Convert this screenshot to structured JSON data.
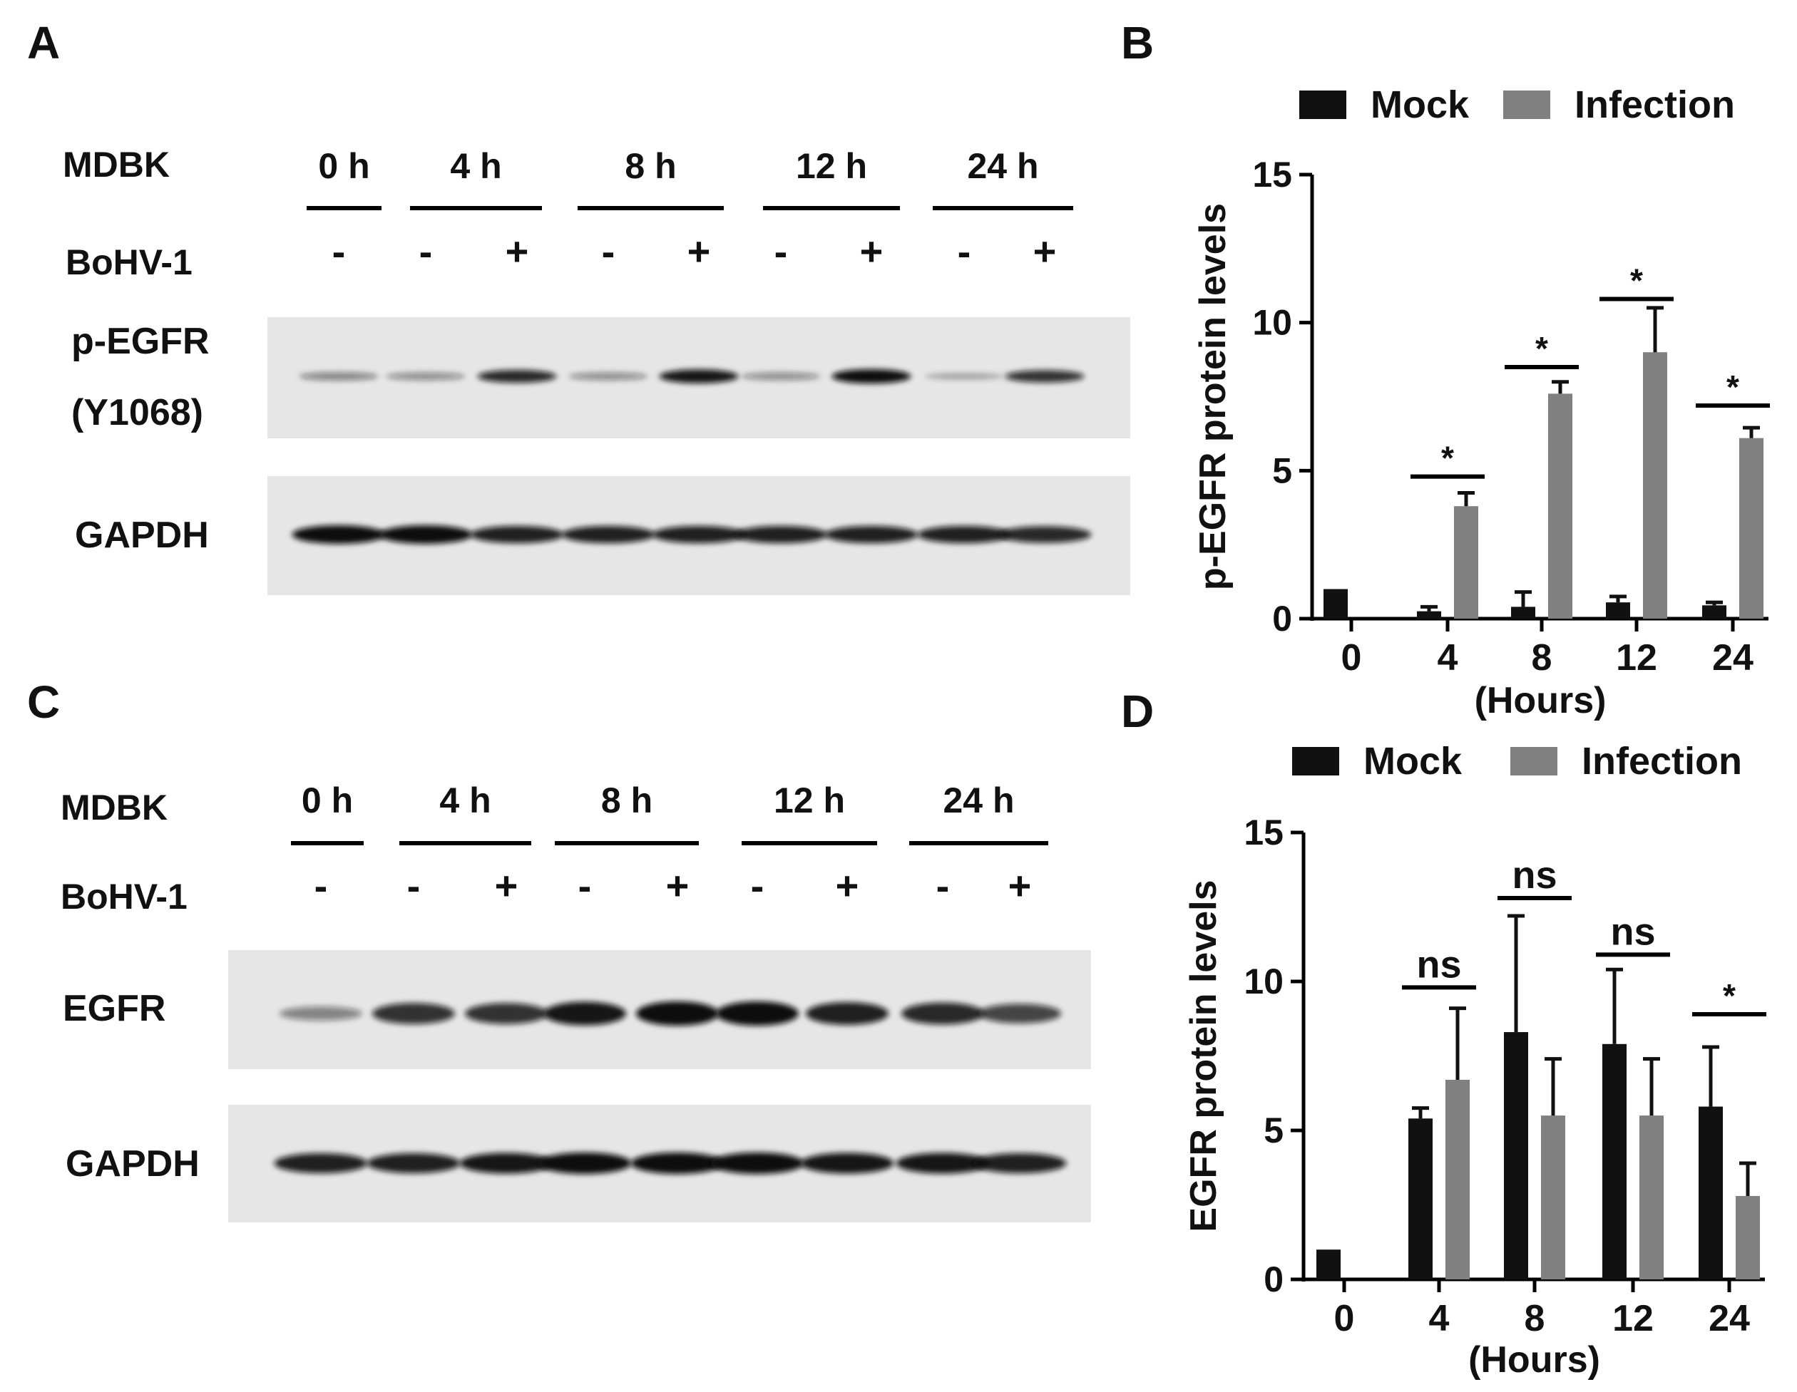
{
  "figure": {
    "panels": [
      {
        "letter": "A",
        "kind": "western_blot",
        "cell_label": "MDBK",
        "time_labels": [
          "0 h",
          "4 h",
          "8 h",
          "12 h",
          "24 h"
        ],
        "treatment_label": "BoHV-1",
        "signs": [
          "-",
          "-",
          "+",
          "-",
          "+",
          "-",
          "+",
          "-",
          "+"
        ],
        "blots": [
          {
            "label_lines": [
              "p-EGFR",
              "(Y1068)"
            ],
            "band_intensity": [
              0.35,
              0.3,
              0.85,
              0.3,
              0.95,
              0.3,
              1.0,
              0.15,
              0.8
            ]
          },
          {
            "label_lines": [
              "GAPDH"
            ],
            "band_intensity": [
              1.0,
              1.0,
              0.9,
              0.9,
              0.9,
              0.9,
              0.9,
              0.9,
              0.85
            ]
          }
        ]
      },
      {
        "letter": "C",
        "kind": "western_blot",
        "cell_label": "MDBK",
        "time_labels": [
          "0 h",
          "4 h",
          "8 h",
          "12 h",
          "24 h"
        ],
        "treatment_label": "BoHV-1",
        "signs": [
          "-",
          "-",
          "+",
          "-",
          "+",
          "-",
          "+",
          "-",
          "+"
        ],
        "blots": [
          {
            "label_lines": [
              "EGFR"
            ],
            "band_intensity": [
              0.35,
              0.8,
              0.8,
              0.95,
              1.0,
              1.0,
              0.9,
              0.85,
              0.7
            ]
          },
          {
            "label_lines": [
              "GAPDH"
            ],
            "band_intensity": [
              0.9,
              0.9,
              0.95,
              1.0,
              1.0,
              1.0,
              0.95,
              0.95,
              0.9
            ]
          }
        ]
      }
    ]
  },
  "chart_data": [
    {
      "panel": "B",
      "type": "bar",
      "categories": [
        "0",
        "4",
        "8",
        "12",
        "24"
      ],
      "xlabel": "(Hours)",
      "ylabel": "p-EGFR protein levels",
      "ylim": [
        0,
        15
      ],
      "yticks": [
        0,
        5,
        10,
        15
      ],
      "legend_position": "top",
      "series": [
        {
          "name": "Mock",
          "color": "#111111",
          "values": [
            1.0,
            0.25,
            0.4,
            0.55,
            0.45
          ],
          "errors": [
            0,
            0.15,
            0.5,
            0.2,
            0.1
          ]
        },
        {
          "name": "Infection",
          "color": "#808080",
          "values": [
            null,
            3.8,
            7.6,
            9.0,
            6.1
          ],
          "errors": [
            0,
            0.45,
            0.4,
            1.5,
            0.35
          ]
        }
      ],
      "annotations": [
        {
          "category": "4",
          "text": "*",
          "y": 4.8
        },
        {
          "category": "8",
          "text": "*",
          "y": 8.5
        },
        {
          "category": "12",
          "text": "*",
          "y": 10.8
        },
        {
          "category": "24",
          "text": "*",
          "y": 7.2
        }
      ]
    },
    {
      "panel": "D",
      "type": "bar",
      "categories": [
        "0",
        "4",
        "8",
        "12",
        "24"
      ],
      "xlabel": "(Hours)",
      "ylabel": "EGFR protein levels",
      "ylim": [
        0,
        15
      ],
      "yticks": [
        0,
        5,
        10,
        15
      ],
      "legend_position": "top",
      "series": [
        {
          "name": "Mock",
          "color": "#111111",
          "values": [
            1.0,
            5.4,
            8.3,
            7.9,
            5.8
          ],
          "errors": [
            0,
            0.35,
            3.9,
            2.5,
            2.0
          ]
        },
        {
          "name": "Infection",
          "color": "#808080",
          "values": [
            null,
            6.7,
            5.5,
            5.5,
            2.8
          ],
          "errors": [
            0,
            2.4,
            1.9,
            1.9,
            1.1
          ]
        }
      ],
      "annotations": [
        {
          "category": "4",
          "text": "ns",
          "y": 9.8
        },
        {
          "category": "8",
          "text": "ns",
          "y": 12.8
        },
        {
          "category": "12",
          "text": "ns",
          "y": 10.9
        },
        {
          "category": "24",
          "text": "*",
          "y": 8.9
        }
      ]
    }
  ]
}
